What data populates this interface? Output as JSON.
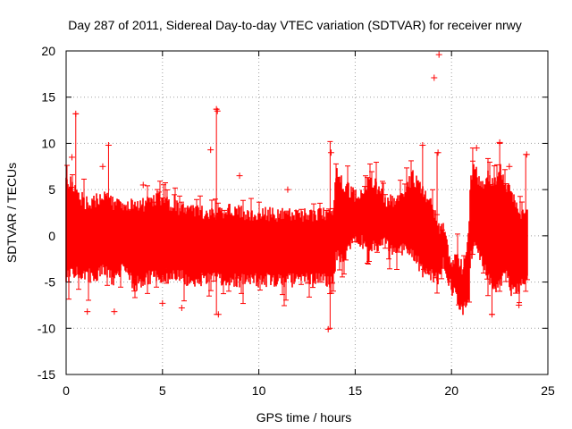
{
  "chart_data": {
    "type": "scatter",
    "title": "Day 287 of 2011, Sidereal Day-to-day VTEC variation (SDTVAR) for receiver nrwy",
    "xlabel": "GPS time / hours",
    "ylabel": "SDTVAR / TECUs",
    "xlim": [
      0,
      25
    ],
    "ylim": [
      -15,
      20
    ],
    "xticks": [
      0,
      5,
      10,
      15,
      20,
      25
    ],
    "yticks": [
      -15,
      -10,
      -5,
      0,
      5,
      10,
      15,
      20
    ],
    "xtick_labels": [
      "0",
      "5",
      "10",
      "15",
      "20",
      "25"
    ],
    "ytick_labels": [
      "-15",
      "-10",
      "-5",
      "0",
      "5",
      "10",
      "15",
      "20"
    ],
    "grid": true,
    "marker": "+",
    "error_bars": true,
    "color": "#ff0000",
    "series": [
      {
        "name": "SDTVAR",
        "band": {
          "x": [
            0.0,
            0.5,
            1.0,
            1.5,
            2.0,
            2.5,
            3.0,
            3.5,
            4.0,
            4.5,
            5.0,
            5.5,
            6.0,
            6.5,
            7.0,
            7.5,
            8.0,
            8.5,
            9.0,
            9.5,
            10.0,
            10.5,
            11.0,
            11.5,
            12.0,
            12.5,
            13.0,
            13.5,
            13.9,
            14.0,
            14.5,
            15.0,
            15.5,
            16.0,
            16.5,
            17.0,
            17.5,
            18.0,
            18.5,
            19.0,
            19.3,
            19.6,
            20.0,
            20.3,
            20.6,
            20.9,
            21.0,
            21.2,
            21.5,
            21.9,
            22.2,
            22.5,
            22.8,
            23.1,
            23.4,
            23.7,
            23.95
          ],
          "upper": [
            6.0,
            4.5,
            3.2,
            3.5,
            3.8,
            3.0,
            3.0,
            3.0,
            3.0,
            3.5,
            3.6,
            3.0,
            2.5,
            2.5,
            2.2,
            2.0,
            2.0,
            2.5,
            2.2,
            2.0,
            2.0,
            2.0,
            2.0,
            2.0,
            2.0,
            2.0,
            2.0,
            2.0,
            2.5,
            6.5,
            5.0,
            4.0,
            5.0,
            5.5,
            3.5,
            3.5,
            4.5,
            6.0,
            4.5,
            3.5,
            0.5,
            0.5,
            -3.5,
            -2.5,
            -4.0,
            0.0,
            6.0,
            7.5,
            5.0,
            6.0,
            5.0,
            7.0,
            5.5,
            4.0,
            3.0,
            2.0,
            3.0
          ],
          "lower": [
            -4.0,
            -3.5,
            -4.0,
            -4.0,
            -3.5,
            -4.5,
            -3.0,
            -5.0,
            -4.5,
            -4.0,
            -4.0,
            -4.0,
            -4.0,
            -5.0,
            -4.5,
            -4.0,
            -4.5,
            -4.5,
            -4.5,
            -4.5,
            -4.5,
            -4.5,
            -4.5,
            -4.5,
            -4.5,
            -4.5,
            -4.5,
            -4.5,
            -4.5,
            -2.0,
            -2.0,
            0.0,
            -0.5,
            -1.0,
            0.0,
            -1.5,
            -1.0,
            -1.5,
            -3.5,
            -4.0,
            -4.5,
            -2.5,
            -5.5,
            -6.5,
            -7.5,
            -7.0,
            -2.0,
            0.0,
            -2.0,
            -4.0,
            -5.5,
            -5.0,
            -3.0,
            -5.5,
            -5.5,
            -5.0,
            -3.5
          ]
        },
        "outliers": [
          {
            "x": 0.5,
            "y": 13.2
          },
          {
            "x": 0.3,
            "y": 8.5
          },
          {
            "x": 1.1,
            "y": -8.2
          },
          {
            "x": 2.2,
            "y": 9.8
          },
          {
            "x": 2.5,
            "y": -8.2
          },
          {
            "x": 1.9,
            "y": 7.5
          },
          {
            "x": 4.0,
            "y": 5.5
          },
          {
            "x": 5.0,
            "y": -7.3
          },
          {
            "x": 6.0,
            "y": -7.8
          },
          {
            "x": 7.5,
            "y": 9.3
          },
          {
            "x": 7.8,
            "y": 13.7
          },
          {
            "x": 7.85,
            "y": 13.5
          },
          {
            "x": 7.9,
            "y": -8.5
          },
          {
            "x": 9.0,
            "y": 6.5
          },
          {
            "x": 11.5,
            "y": 5.0
          },
          {
            "x": 13.6,
            "y": -10.1
          },
          {
            "x": 13.75,
            "y": 9.0
          },
          {
            "x": 18.5,
            "y": 9.8
          },
          {
            "x": 19.1,
            "y": 17.1
          },
          {
            "x": 19.35,
            "y": 19.6
          },
          {
            "x": 19.3,
            "y": 9.0
          },
          {
            "x": 21.3,
            "y": 9.5
          },
          {
            "x": 22.1,
            "y": -8.5
          },
          {
            "x": 22.5,
            "y": 10.1
          },
          {
            "x": 23.0,
            "y": 7.5
          },
          {
            "x": 23.9,
            "y": 8.8
          },
          {
            "x": 23.5,
            "y": -7.5
          }
        ],
        "error_bars": [
          {
            "x": 0.5,
            "low": -3.0,
            "high": 13.2
          },
          {
            "x": 2.2,
            "low": -2.0,
            "high": 9.8
          },
          {
            "x": 7.8,
            "low": -8.5,
            "high": 13.7
          },
          {
            "x": 13.7,
            "low": -10.0,
            "high": 10.2
          },
          {
            "x": 18.5,
            "low": 2.0,
            "high": 9.8
          },
          {
            "x": 19.25,
            "low": -1.0,
            "high": 9.0
          },
          {
            "x": 21.1,
            "low": -2.0,
            "high": 9.5
          },
          {
            "x": 22.1,
            "low": -8.5,
            "high": 5.0
          },
          {
            "x": 22.5,
            "low": -6.0,
            "high": 10.0
          },
          {
            "x": 23.85,
            "low": -6.0,
            "high": 8.8
          }
        ]
      }
    ]
  }
}
